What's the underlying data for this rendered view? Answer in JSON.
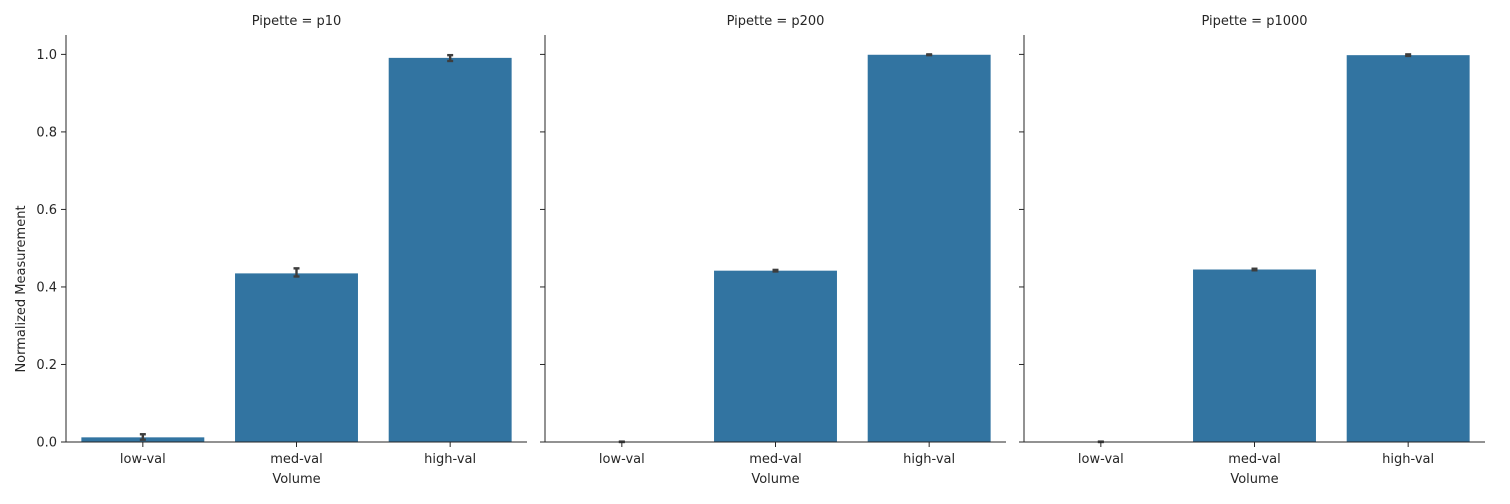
{
  "chart_data": {
    "type": "bar",
    "ylabel": "Normalized Measurement",
    "xlabel": "Volume",
    "ylim": [
      0,
      1.05
    ],
    "yticks": [
      0.0,
      0.2,
      0.4,
      0.6,
      0.8,
      1.0
    ],
    "ytick_labels": [
      "0.0",
      "0.2",
      "0.4",
      "0.6",
      "0.8",
      "1.0"
    ],
    "categories": [
      "low-val",
      "med-val",
      "high-val"
    ],
    "bar_color": "#3274a1",
    "errorbar_color": "#3d3d3d",
    "panels": [
      {
        "title": "Pipette = p10",
        "values": [
          0.012,
          0.435,
          0.991
        ],
        "err_low": [
          0.006,
          0.427,
          0.983
        ],
        "err_high": [
          0.02,
          0.448,
          0.998
        ]
      },
      {
        "title": "Pipette = p200",
        "values": [
          0.0,
          0.442,
          0.999
        ],
        "err_low": [
          0.0,
          0.44,
          0.998
        ],
        "err_high": [
          0.001,
          0.444,
          1.0
        ]
      },
      {
        "title": "Pipette = p1000",
        "values": [
          0.0,
          0.445,
          0.998
        ],
        "err_low": [
          0.0,
          0.443,
          0.996
        ],
        "err_high": [
          0.001,
          0.447,
          1.0
        ]
      }
    ]
  }
}
